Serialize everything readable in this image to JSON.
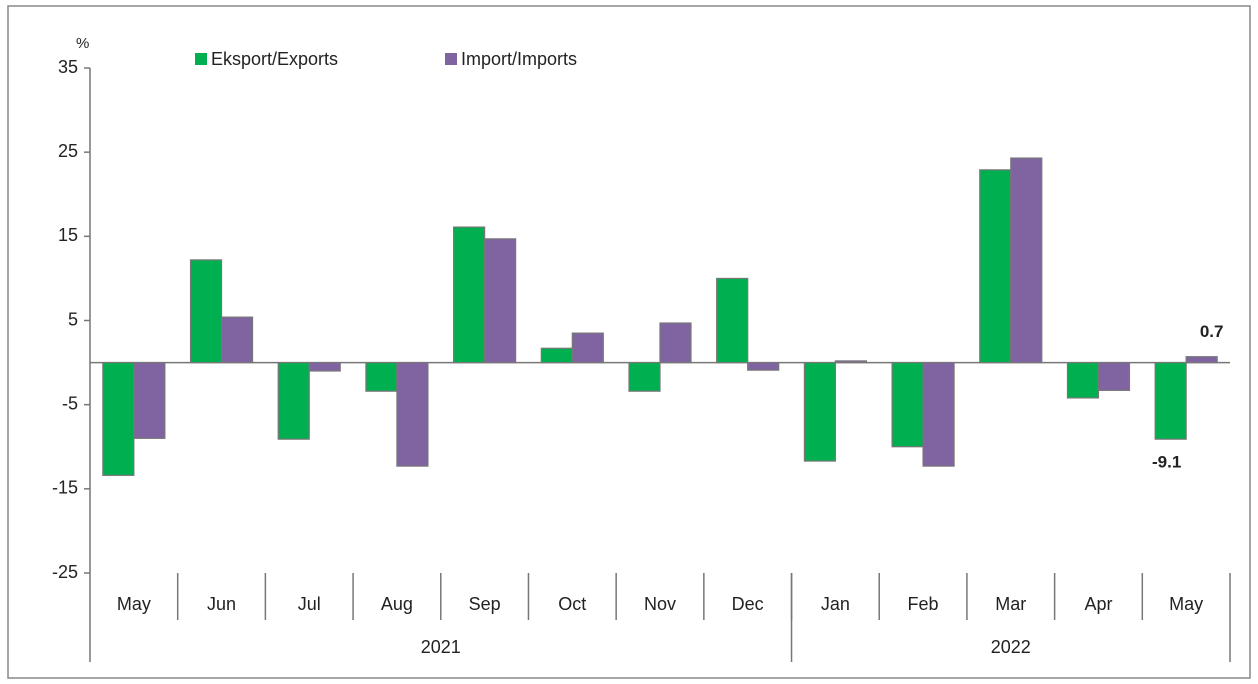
{
  "chart_data": {
    "type": "bar",
    "y_label": "%",
    "categories": [
      "May",
      "Jun",
      "Jul",
      "Aug",
      "Sep",
      "Oct",
      "Nov",
      "Dec",
      "Jan",
      "Feb",
      "Mar",
      "Apr",
      "May"
    ],
    "groups": [
      {
        "label": "2021",
        "count": 8
      },
      {
        "label": "2022",
        "count": 5
      }
    ],
    "series": [
      {
        "name": "Eksport/Exports",
        "color": "#00b050",
        "values": [
          -13.4,
          12.2,
          -9.1,
          -3.4,
          16.1,
          1.7,
          -3.4,
          10.0,
          -11.7,
          -10.0,
          22.9,
          -4.2,
          -9.1
        ],
        "value_labels": [
          null,
          null,
          null,
          null,
          null,
          null,
          null,
          null,
          null,
          null,
          null,
          null,
          "-9.1"
        ]
      },
      {
        "name": "Import/Imports",
        "color": "#8064a2",
        "values": [
          -9.0,
          5.4,
          -1.0,
          -12.3,
          14.7,
          3.5,
          4.7,
          -0.9,
          0.2,
          -12.3,
          24.3,
          -3.3,
          0.7
        ],
        "value_labels": [
          null,
          null,
          null,
          null,
          null,
          null,
          null,
          null,
          null,
          null,
          null,
          null,
          "0.7"
        ]
      }
    ],
    "ylim": [
      -25,
      35
    ],
    "yticks": [
      35,
      25,
      15,
      5,
      -5,
      -15,
      -25
    ],
    "legend": "top"
  }
}
